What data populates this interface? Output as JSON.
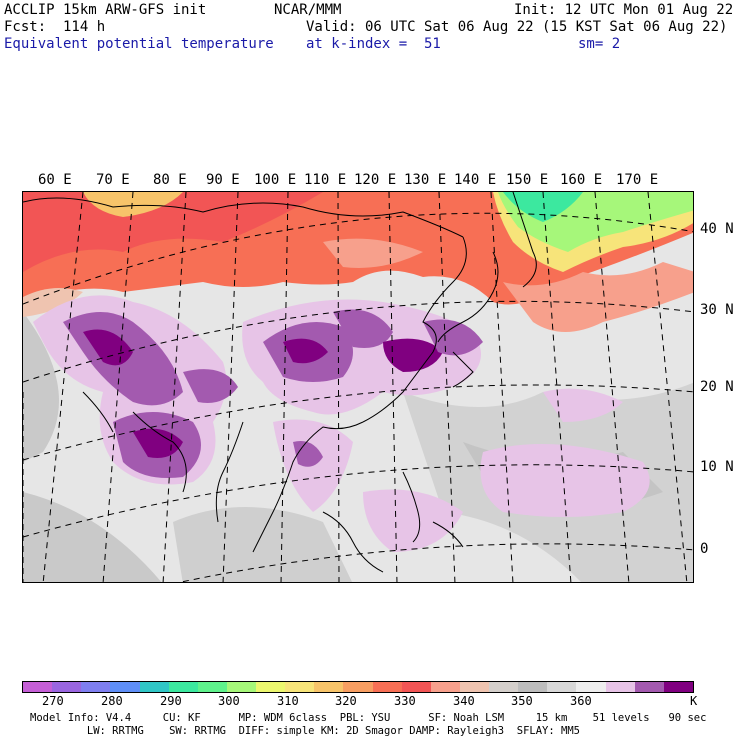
{
  "header": {
    "model": "ACCLIP 15km ARW-GFS init",
    "org": "NCAR/MMM",
    "init": "Init: 12 UTC Mon 01 Aug 22",
    "fcst": "Fcst:  114 h",
    "valid": "Valid: 06 UTC Sat 06 Aug 22 (15 KST Sat 06 Aug 22)",
    "field": "Equivalent potential temperature",
    "level": "at k-index =  51",
    "smooth": "sm= 2"
  },
  "map": {
    "lon_labels": [
      "60 E",
      "70 E",
      "80 E",
      "90 E",
      "100 E",
      "110 E",
      "120 E",
      "130 E",
      "140 E",
      "150 E",
      "160 E",
      "170 E"
    ],
    "lat_labels": [
      "40 N",
      "30 N",
      "20 N",
      "10 N",
      "0"
    ]
  },
  "colorbar": {
    "colors": [
      "#c55fd6",
      "#9a66e0",
      "#7f7ff0",
      "#5f8ff7",
      "#30c6c6",
      "#3ce89f",
      "#5ff28c",
      "#a6f77a",
      "#ecf76f",
      "#f7e47a",
      "#f7c46a",
      "#f79e62",
      "#f76f55",
      "#f25555",
      "#f7a08c",
      "#efc4b0",
      "#d4cfcb",
      "#bdbdbd",
      "#d8d8d8",
      "#eeeeee",
      "#e7c4e7",
      "#a35aaf",
      "#800080"
    ],
    "labels": [
      "270",
      "280",
      "290",
      "300",
      "310",
      "320",
      "330",
      "340",
      "350",
      "360",
      "K"
    ]
  },
  "footer": {
    "line1": "Model Info: V4.4     CU: KF      MP: WDM 6class  PBL: YSU      SF: Noah LSM     15 km    51 levels   90 sec",
    "line2": "         LW: RRTMG    SW: RRTMG  DIFF: simple KM: 2D Smagor DAMP: Rayleigh3  SFLAY: MM5"
  }
}
